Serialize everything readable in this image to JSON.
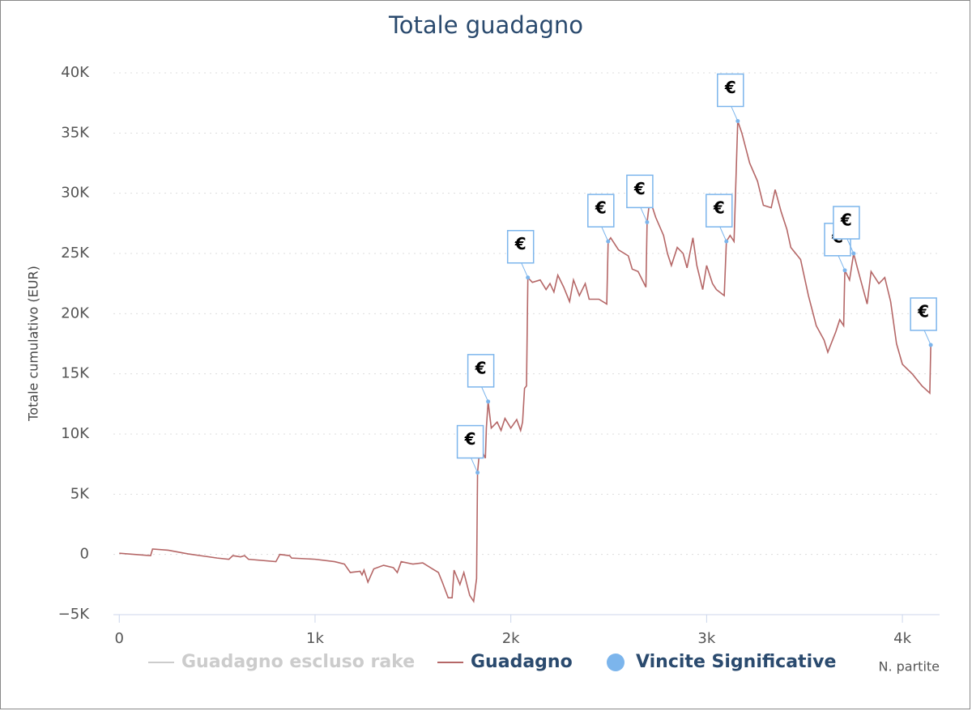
{
  "chart_data": {
    "type": "line",
    "title": "Totale guadagno",
    "ylabel": "Totale cumulativo (EUR)",
    "xlabel": "N. partite",
    "xlim": [
      -30,
      4190
    ],
    "ylim": [
      -5000,
      40000
    ],
    "xticks": [
      0,
      {
        "value": 1000,
        "label": "1k"
      },
      {
        "value": 2000,
        "label": "2k"
      },
      {
        "value": 3000,
        "label": "3k"
      },
      {
        "value": 4000,
        "label": "4k"
      }
    ],
    "yticks": [
      {
        "value": -5000,
        "label": "−5K"
      },
      0,
      {
        "value": 5000,
        "label": "5K"
      },
      {
        "value": 10000,
        "label": "10K"
      },
      {
        "value": 15000,
        "label": "15K"
      },
      {
        "value": 20000,
        "label": "20K"
      },
      {
        "value": 25000,
        "label": "25K"
      },
      {
        "value": 30000,
        "label": "30K"
      },
      {
        "value": 35000,
        "label": "35K"
      },
      {
        "value": 40000,
        "label": "40K"
      }
    ],
    "grid": true,
    "legend": "bottom",
    "series": [
      {
        "name": "Guadagno escluso rake",
        "color": "#cccccc",
        "visible": false
      },
      {
        "name": "Guadagno",
        "color": "#b56767",
        "x": [
          0,
          160,
          170,
          250,
          350,
          500,
          560,
          580,
          620,
          640,
          660,
          800,
          820,
          870,
          880,
          1000,
          1100,
          1150,
          1180,
          1230,
          1240,
          1250,
          1270,
          1300,
          1350,
          1400,
          1420,
          1440,
          1500,
          1550,
          1600,
          1630,
          1650,
          1680,
          1700,
          1710,
          1740,
          1760,
          1790,
          1810,
          1825,
          1830,
          1845,
          1855,
          1870,
          1875,
          1884,
          1900,
          1930,
          1950,
          1970,
          2000,
          2030,
          2050,
          2060,
          2070,
          2080,
          2087,
          2110,
          2150,
          2180,
          2200,
          2220,
          2240,
          2270,
          2300,
          2320,
          2350,
          2380,
          2400,
          2450,
          2490,
          2497,
          2510,
          2550,
          2600,
          2620,
          2650,
          2690,
          2696,
          2710,
          2740,
          2780,
          2800,
          2820,
          2850,
          2880,
          2900,
          2930,
          2950,
          2980,
          3000,
          3030,
          3050,
          3090,
          3101,
          3120,
          3140,
          3159,
          3180,
          3220,
          3260,
          3290,
          3330,
          3350,
          3380,
          3410,
          3430,
          3480,
          3520,
          3560,
          3600,
          3619,
          3660,
          3680,
          3700,
          3706,
          3730,
          3751,
          3770,
          3800,
          3820,
          3840,
          3880,
          3910,
          3940,
          3970,
          4000,
          4050,
          4100,
          4140,
          4145
        ],
        "values": [
          100,
          -100,
          450,
          350,
          50,
          -300,
          -400,
          -100,
          -200,
          -100,
          -400,
          -600,
          0,
          -100,
          -300,
          -400,
          -600,
          -800,
          -1500,
          -1400,
          -1700,
          -1300,
          -2300,
          -1200,
          -900,
          -1100,
          -1500,
          -600,
          -800,
          -700,
          -1200,
          -1500,
          -2300,
          -3600,
          -3600,
          -1300,
          -2500,
          -1500,
          -3400,
          -3900,
          -2000,
          6800,
          9500,
          8500,
          8000,
          10500,
          12700,
          10500,
          11000,
          10300,
          11300,
          10500,
          11200,
          10300,
          11000,
          13800,
          14000,
          23000,
          22600,
          22800,
          22000,
          22500,
          21800,
          23200,
          22200,
          21000,
          22800,
          21500,
          22500,
          21200,
          21200,
          20800,
          26000,
          26300,
          25300,
          24800,
          23700,
          23500,
          22200,
          27600,
          29500,
          28000,
          26500,
          25000,
          24000,
          25500,
          25000,
          23800,
          26300,
          24000,
          22000,
          24000,
          22500,
          22000,
          21500,
          26000,
          26500,
          26000,
          36000,
          35000,
          32500,
          31000,
          29000,
          28800,
          30300,
          28500,
          27000,
          25500,
          24500,
          21500,
          19000,
          17800,
          16800,
          18500,
          19500,
          19000,
          23600,
          22800,
          25000,
          23800,
          22000,
          20800,
          23500,
          22500,
          23000,
          21000,
          17500,
          15800,
          15000,
          14000,
          13400,
          17400
        ]
      },
      {
        "name": "Vincite Significative",
        "type": "flags",
        "color": "#7cb5ec",
        "x": [
          1830,
          1884,
          2087,
          2497,
          2696,
          3101,
          3159,
          3706,
          3751,
          4145
        ],
        "values": [
          6800,
          12700,
          23000,
          26000,
          27600,
          26000,
          36000,
          23600,
          25000,
          17400
        ],
        "labels": [
          "€",
          "€",
          "€",
          "€",
          "€",
          "€",
          "€",
          "€",
          "€",
          "€"
        ]
      }
    ]
  }
}
